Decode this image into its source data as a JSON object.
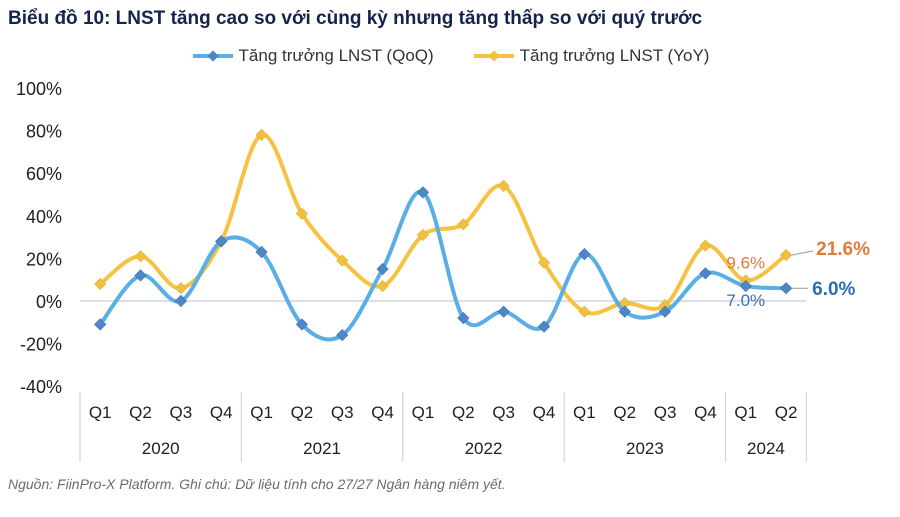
{
  "chart_data": {
    "type": "line",
    "title": "Biểu đồ 10: LNST tăng cao so với cùng kỳ nhưng tăng thấp so với quý trước",
    "quarters": [
      "Q1",
      "Q2",
      "Q3",
      "Q4",
      "Q1",
      "Q2",
      "Q3",
      "Q4",
      "Q1",
      "Q2",
      "Q3",
      "Q4",
      "Q1",
      "Q2",
      "Q3",
      "Q4",
      "Q1",
      "Q2"
    ],
    "years": [
      {
        "label": "2020",
        "span": 4
      },
      {
        "label": "2021",
        "span": 4
      },
      {
        "label": "2022",
        "span": 4
      },
      {
        "label": "2023",
        "span": 4
      },
      {
        "label": "2024",
        "span": 2
      }
    ],
    "y_ticks": [
      "100%",
      "80%",
      "60%",
      "40%",
      "20%",
      "0%",
      "-20%",
      "-40%"
    ],
    "ylim": [
      -40,
      100
    ],
    "legend_position": "top",
    "series": [
      {
        "name": "Tăng trưởng LNST (QoQ)",
        "color": "#5aaee6",
        "marker": "#4f86c6",
        "values": [
          -11,
          12,
          0,
          28,
          23,
          -11,
          -16,
          15,
          51,
          -8,
          -5,
          -12,
          22,
          -5,
          -5,
          13,
          7.0,
          6.0
        ]
      },
      {
        "name": "Tăng trưởng LNST (YoY)",
        "color": "#f5c242",
        "marker": "#f0c040",
        "values": [
          8,
          21,
          6,
          28,
          78,
          41,
          19,
          7,
          31,
          36,
          54,
          18,
          -5,
          -1,
          -2,
          26,
          9.6,
          21.6
        ]
      }
    ],
    "annotations": {
      "yoy_q1_2024": "9.6%",
      "qoq_q1_2024": "7.0%",
      "yoy_last": "21.6%",
      "qoq_last": "6.0%"
    }
  },
  "footer": "Nguồn: FiinPro-X Platform. Ghi chú: Dữ liệu  tính cho 27/27 Ngân hàng niêm yết."
}
